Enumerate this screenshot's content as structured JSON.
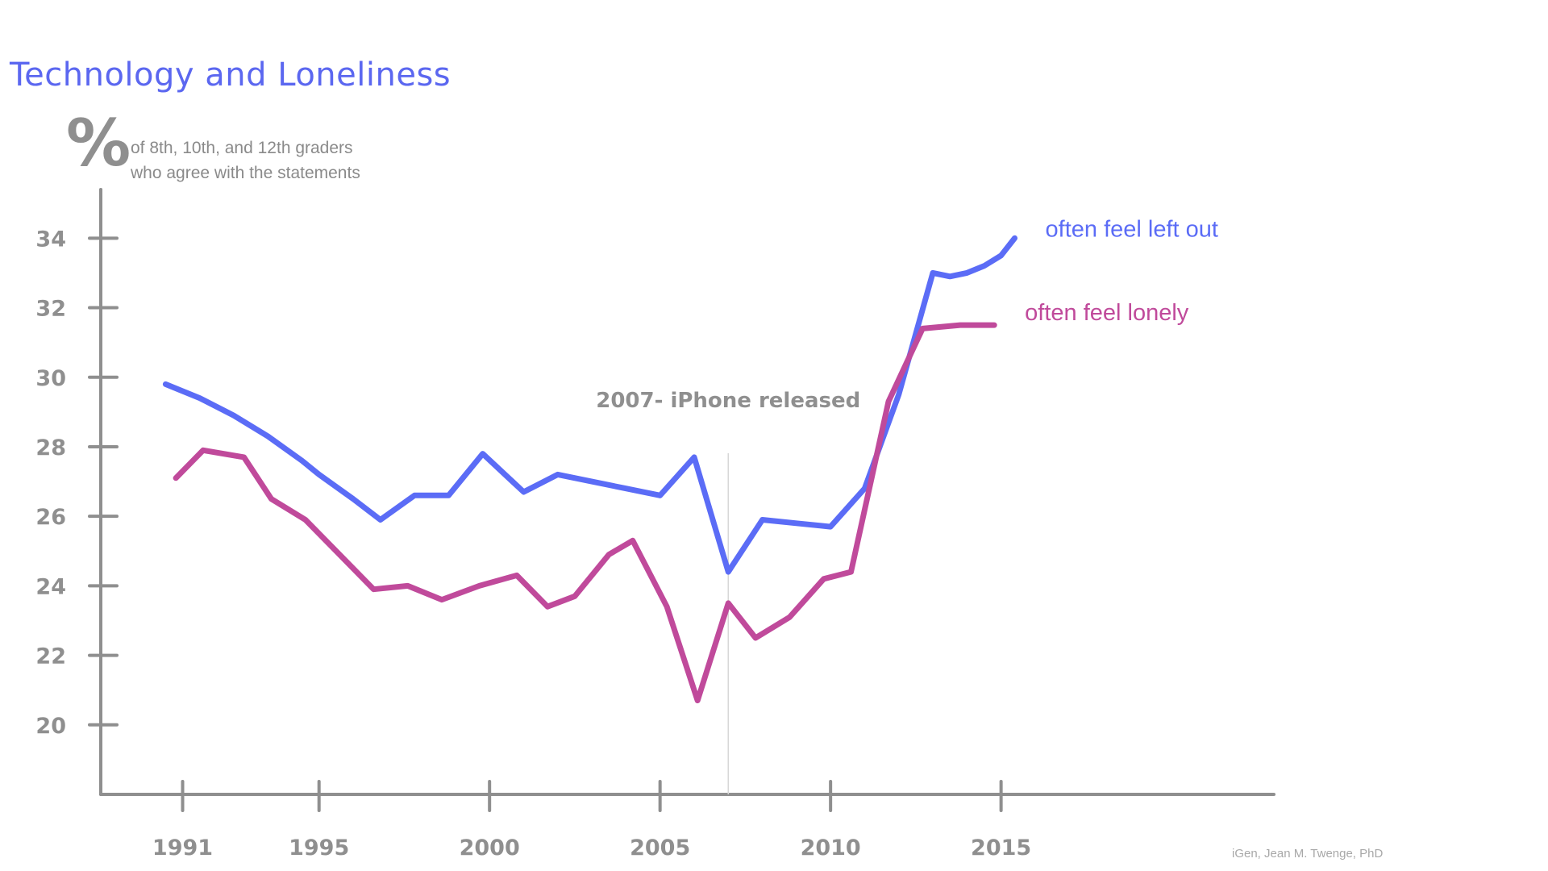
{
  "title": "Technology and Loneliness",
  "y_unit": "%",
  "subtitle_line1": "of 8th, 10th, and 12th graders",
  "subtitle_line2": "who agree with the statements",
  "annotation": "2007- iPhone released",
  "credit": "iGen, Jean M. Twenge, PhD",
  "colors": {
    "left_out": "#5b6cf6",
    "lonely": "#c04a9b",
    "axis": "#8f8f8f",
    "annotation_line": "#d7d7d7"
  },
  "chart_data": {
    "type": "line",
    "title": "Technology and Loneliness",
    "ylabel": "% of 8th, 10th, and 12th graders who agree with the statements",
    "xlabel": "",
    "x_ticks": [
      1991,
      1995,
      2000,
      2005,
      2010,
      2015
    ],
    "y_ticks": [
      20,
      22,
      24,
      26,
      28,
      30,
      32,
      34
    ],
    "xlim": [
      1988.6,
      2023
    ],
    "ylim": [
      18,
      35.4
    ],
    "grid": false,
    "legend": "inline labels at right end of lines",
    "annotation": {
      "x": 2007,
      "text": "2007- iPhone released"
    },
    "series": [
      {
        "name": "often feel left out",
        "color": "#5b6cf6",
        "x": [
          1990.5,
          1991.5,
          1992.5,
          1993.5,
          1994.5,
          1995.0,
          1996.0,
          1996.8,
          1997.8,
          1998.8,
          1999.8,
          2001.0,
          2002.0,
          2003.0,
          2004.0,
          2005.0,
          2006.0,
          2007.0,
          2008.0,
          2009.0,
          2010.0,
          2011.0,
          2012.0,
          2013.0,
          2013.5,
          2014.0,
          2014.5,
          2015.0,
          2015.4
        ],
        "values": [
          29.8,
          29.4,
          28.9,
          28.3,
          27.6,
          27.2,
          26.5,
          25.9,
          26.6,
          26.6,
          27.8,
          26.7,
          27.2,
          27.0,
          26.8,
          26.6,
          27.7,
          24.4,
          25.9,
          25.8,
          25.7,
          26.8,
          29.5,
          33.0,
          32.9,
          33.0,
          33.2,
          33.5,
          34.0
        ]
      },
      {
        "name": "often feel lonely",
        "color": "#c04a9b",
        "x": [
          1990.8,
          1991.6,
          1992.8,
          1993.6,
          1994.6,
          1995.6,
          1996.6,
          1997.6,
          1998.6,
          1999.7,
          2000.8,
          2001.7,
          2002.5,
          2003.5,
          2004.2,
          2005.2,
          2006.1,
          2007.0,
          2007.8,
          2008.8,
          2009.8,
          2010.6,
          2011.7,
          2012.7,
          2013.8,
          2014.8
        ],
        "values": [
          27.1,
          27.9,
          27.7,
          26.5,
          25.9,
          24.9,
          23.9,
          24.0,
          23.6,
          24.0,
          24.3,
          23.4,
          23.7,
          24.9,
          25.3,
          23.4,
          20.7,
          23.5,
          22.5,
          23.1,
          24.2,
          24.4,
          29.3,
          31.4,
          31.5,
          31.5
        ]
      }
    ]
  }
}
